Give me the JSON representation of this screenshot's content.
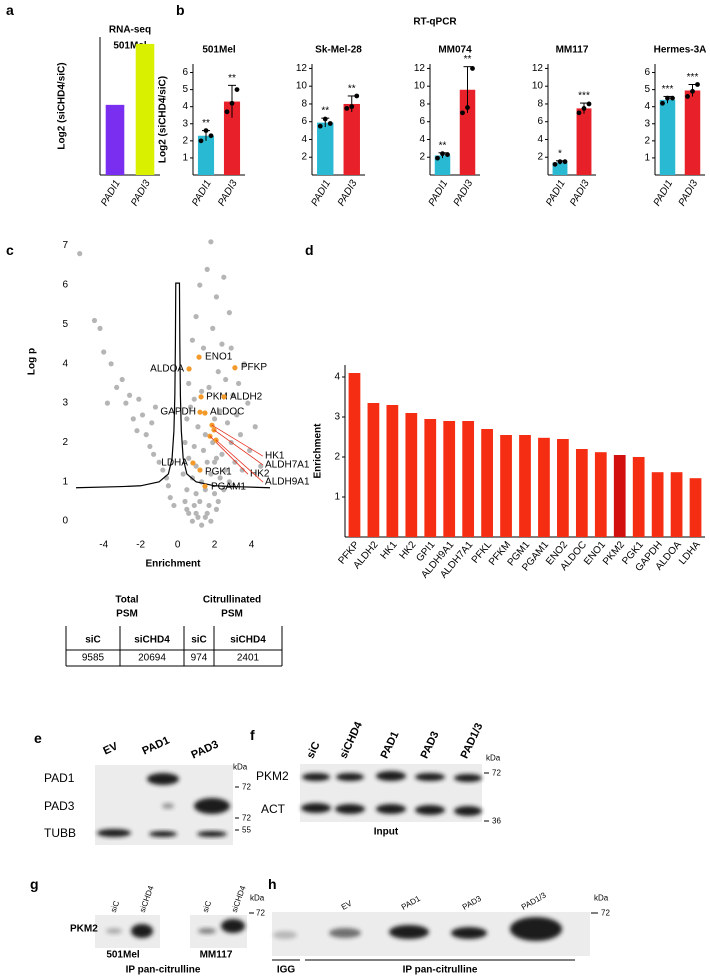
{
  "panel_letters": [
    "a",
    "b",
    "c",
    "d",
    "e",
    "f",
    "g",
    "h"
  ],
  "headings": {
    "b": "RT-qPCR"
  },
  "chart_data": [
    {
      "type": "bar",
      "title": "RNA-seq",
      "subtitle": "501Mel",
      "ylabel": "Log2 (siCHD4/siC)",
      "categories": [
        "PADI1",
        "PADI3"
      ],
      "values": [
        3.05,
        5.7
      ],
      "colors": [
        "#7a2ff0",
        "#d9f000"
      ],
      "ylim": [
        0,
        6
      ]
    },
    {
      "type": "bar",
      "title": "501Mel",
      "ylabel": "Log2 (siCHD4/siC)",
      "categories": [
        "PADI1",
        "PADI3"
      ],
      "values": [
        2.3,
        4.3
      ],
      "errors": [
        0.3,
        0.95
      ],
      "points": [
        [
          2.0,
          2.6,
          2.3
        ],
        [
          3.7,
          4.2,
          5.0
        ]
      ],
      "annotations": [
        "**",
        "**"
      ],
      "colors": [
        "#2ab9d2",
        "#e8202a"
      ],
      "ylim": [
        0,
        6.5
      ],
      "yticks": [
        1,
        2,
        3,
        4,
        5,
        6
      ]
    },
    {
      "type": "bar",
      "title": "Sk-Mel-28",
      "categories": [
        "PADI1",
        "PADI3"
      ],
      "values": [
        5.9,
        8.0
      ],
      "errors": [
        0.5,
        0.9
      ],
      "points": [
        [
          5.5,
          6.3,
          5.8
        ],
        [
          7.5,
          7.7,
          8.9
        ]
      ],
      "annotations": [
        "**",
        "**"
      ],
      "colors": [
        "#2ab9d2",
        "#e8202a"
      ],
      "ylim": [
        0,
        12.5
      ],
      "yticks": [
        2,
        4,
        6,
        8,
        10,
        12
      ]
    },
    {
      "type": "bar",
      "title": "MM074",
      "categories": [
        "PADI1",
        "PADI3"
      ],
      "values": [
        2.2,
        9.6
      ],
      "errors": [
        0.3,
        2.6
      ],
      "points": [
        [
          1.9,
          2.4,
          2.3
        ],
        [
          7.0,
          7.6,
          12.0
        ]
      ],
      "annotations": [
        "**",
        "**"
      ],
      "colors": [
        "#2ab9d2",
        "#e8202a"
      ],
      "ylim": [
        0,
        12.5
      ],
      "yticks": [
        2,
        4,
        6,
        8,
        10,
        12
      ]
    },
    {
      "type": "bar",
      "title": "MM117",
      "categories": [
        "PADI1",
        "PADI3"
      ],
      "values": [
        1.4,
        7.5
      ],
      "errors": [
        0.2,
        0.6
      ],
      "points": [
        [
          1.2,
          1.5,
          1.5
        ],
        [
          7.0,
          7.5,
          8.0
        ]
      ],
      "annotations": [
        "*",
        "***"
      ],
      "colors": [
        "#2ab9d2",
        "#e8202a"
      ],
      "ylim": [
        0,
        12.5
      ],
      "yticks": [
        2,
        4,
        6,
        8,
        10,
        12
      ]
    },
    {
      "type": "bar",
      "title": "Hermes-3A",
      "categories": [
        "PADI1",
        "PADI3"
      ],
      "values": [
        4.4,
        4.95
      ],
      "errors": [
        0.2,
        0.35
      ],
      "points": [
        [
          4.2,
          4.5,
          4.5
        ],
        [
          4.6,
          4.9,
          5.3
        ]
      ],
      "annotations": [
        "***",
        "***"
      ],
      "colors": [
        "#2ab9d2",
        "#e8202a"
      ],
      "ylim": [
        0,
        6.5
      ],
      "yticks": [
        1,
        2,
        3,
        4,
        5,
        6
      ]
    },
    {
      "type": "scatter",
      "xlabel": "Enrichment",
      "ylabel": "Log p",
      "color": "#b5b5b5",
      "x": [
        -5.3,
        -4.5,
        -4.2,
        -4.0,
        -3.6,
        -3.3,
        -3.0,
        -2.8,
        -2.6,
        -2.4,
        -2.1,
        -1.9,
        -1.7,
        -1.5,
        -1.3,
        -1.2,
        -1.0,
        -0.8,
        -0.6,
        -0.5,
        -3.8,
        -2.2,
        -1.4,
        1.8,
        1.6,
        1.2,
        2.5,
        2.1,
        2.8,
        1.0,
        0.8,
        1.9,
        2.4,
        3.6,
        1.4,
        0.6,
        2.9,
        3.3,
        2.2,
        1.7,
        3.0,
        2.6,
        0.9,
        1.3,
        0.5,
        0.7,
        1.1,
        1.5,
        2.0,
        2.3,
        2.7,
        3.2,
        3.8,
        4.2,
        0.4,
        0.9,
        1.4,
        1.9,
        2.4,
        2.9,
        3.4,
        0.6,
        1.0,
        1.6,
        2.1,
        2.6,
        3.1,
        0.3,
        0.8,
        1.3,
        1.8,
        2.3,
        2.8,
        3.5,
        0.5,
        1.0,
        1.5,
        2.0,
        2.5,
        3.0,
        0.4,
        0.9,
        1.2,
        1.7,
        2.2,
        0.6,
        1.1,
        1.6,
        2.1,
        0.8,
        1.3,
        1.8,
        0.5,
        1.0,
        1.5,
        -0.4,
        -0.2,
        4.5,
        3.9,
        2.0
      ],
      "y": [
        6.8,
        5.1,
        4.9,
        4.3,
        4.0,
        3.4,
        3.6,
        3.0,
        3.2,
        2.6,
        3.1,
        2.7,
        2.2,
        1.9,
        1.7,
        2.9,
        1.5,
        1.3,
        1.1,
        0.9,
        3.0,
        2.3,
        2.5,
        7.1,
        6.4,
        6.0,
        6.2,
        5.7,
        5.3,
        5.2,
        4.6,
        4.9,
        4.5,
        4.0,
        4.4,
        3.5,
        4.4,
        3.5,
        3.8,
        3.4,
        3.2,
        3.6,
        3.1,
        3.3,
        2.6,
        2.9,
        2.4,
        2.2,
        2.6,
        2.8,
        2.5,
        2.7,
        3.0,
        2.4,
        2.0,
        1.9,
        1.8,
        2.0,
        1.7,
        2.0,
        2.2,
        1.6,
        1.4,
        1.5,
        1.6,
        1.3,
        1.5,
        1.2,
        1.1,
        1.0,
        1.2,
        1.1,
        1.0,
        1.3,
        0.8,
        0.7,
        0.8,
        0.7,
        0.8,
        0.9,
        0.5,
        0.4,
        0.5,
        0.4,
        0.5,
        0.2,
        0.1,
        0.2,
        0.3,
        0.0,
        -0.1,
        0.0,
        0.3,
        0.2,
        0.1,
        0.6,
        0.4,
        1.4,
        1.8,
        1.5
      ],
      "highlight": {
        "labels": [
          "ENO1",
          "PFKP",
          "ALDOA",
          "PKM",
          "ALDH2",
          "GAPDH",
          "ALDOC",
          "HK1",
          "ALDH7A1",
          "HK2",
          "ALDH9A1",
          "LDHA",
          "PGK1",
          "PGAM1"
        ],
        "x": [
          1.16,
          3.1,
          0.62,
          1.27,
          2.51,
          1.21,
          1.48,
          1.86,
          1.97,
          1.75,
          2.08,
          0.83,
          1.21,
          1.48
        ],
        "y": [
          4.17,
          3.9,
          3.87,
          3.16,
          3.16,
          2.77,
          2.75,
          2.44,
          2.32,
          2.16,
          2.06,
          1.48,
          1.3,
          0.89
        ],
        "color": "#f39a2a",
        "label_color": "#e5301f"
      },
      "threshold": {
        "x": [
          -5.5,
          -3,
          -2,
          -1,
          -0.5,
          -0.3,
          -0.2,
          -0.15,
          -0.12,
          -0.1,
          0.1,
          0.12,
          0.15,
          0.2,
          0.3,
          0.5,
          1,
          2,
          3,
          5
        ],
        "y": [
          0.85,
          0.88,
          0.9,
          1.0,
          1.2,
          1.6,
          2.3,
          3.2,
          4.5,
          6.05,
          6.05,
          4.5,
          3.2,
          2.3,
          1.6,
          1.2,
          1.0,
          0.9,
          0.88,
          0.85
        ],
        "color": "#000000"
      },
      "xlim": [
        -5.5,
        5
      ],
      "ylim": [
        -0.3,
        7.4
      ],
      "xticks": [
        -4,
        -2,
        0,
        2,
        4
      ],
      "yticks": [
        0,
        1,
        2,
        3,
        4,
        5,
        6,
        7
      ]
    },
    {
      "type": "bar",
      "ylabel": "Enrichment",
      "categories": [
        "PFKP",
        "ALDH2",
        "HK1",
        "HK2",
        "GPI1",
        "ALDH9A1",
        "ALDH7A1",
        "PFKL",
        "PFKM",
        "PGM1",
        "PGAM1",
        "ENO2",
        "ALDOC",
        "ENO1",
        "PKM2",
        "PGK1",
        "GAPDH",
        "ALDOA",
        "LDHA"
      ],
      "values": [
        4.1,
        3.35,
        3.3,
        3.1,
        2.95,
        2.9,
        2.9,
        2.7,
        2.55,
        2.55,
        2.48,
        2.45,
        2.2,
        2.12,
        2.05,
        2.0,
        1.62,
        1.62,
        1.47
      ],
      "colors": [
        "#f52d12",
        "#f52d12",
        "#f52d12",
        "#f52d12",
        "#f52d12",
        "#f52d12",
        "#f52d12",
        "#f52d12",
        "#f52d12",
        "#f52d12",
        "#f52d12",
        "#f52d12",
        "#f52d12",
        "#f52d12",
        "#d2100e",
        "#f52d12",
        "#f52d12",
        "#f52d12",
        "#f52d12"
      ],
      "ylim": [
        0,
        4.3
      ],
      "yticks": [
        1,
        2,
        3,
        4
      ]
    }
  ],
  "table": {
    "headers": [
      [
        "Total",
        "PSM"
      ],
      [
        "Citrullinated",
        "PSM"
      ]
    ],
    "rows": [
      [
        "siC",
        "siCHD4",
        "siC",
        "siCHD4"
      ],
      [
        9585,
        20694,
        974,
        2401
      ]
    ]
  },
  "blots": {
    "e": {
      "lanes": [
        "EV",
        "PAD1",
        "PAD3"
      ],
      "rows": [
        "PAD1",
        "PAD3",
        "TUBB"
      ],
      "unit": "kDa",
      "markers": [
        72,
        72,
        55
      ]
    },
    "f": {
      "lanes": [
        "siC",
        "siCHD4",
        "PAD1",
        "PAD3",
        "PAD1/3"
      ],
      "rows": [
        "PKM2",
        "ACT"
      ],
      "unit": "kDa",
      "markers": [
        72,
        36
      ],
      "caption": "Input"
    },
    "g": {
      "lanes": [
        "siC",
        "siCHD4",
        "siC",
        "siCHD4"
      ],
      "rows": [
        "PKM2"
      ],
      "unit": "kDa",
      "markers": [
        72
      ],
      "groups": [
        "501Mel",
        "MM117"
      ],
      "caption": "IP pan-citrulline"
    },
    "h": {
      "lanes": [
        "EV",
        "PAD1",
        "PAD3",
        "PAD1/3"
      ],
      "unit": "kDa",
      "markers": [
        72
      ],
      "groups": [
        "IGG",
        "IP pan-citrulline"
      ]
    }
  }
}
